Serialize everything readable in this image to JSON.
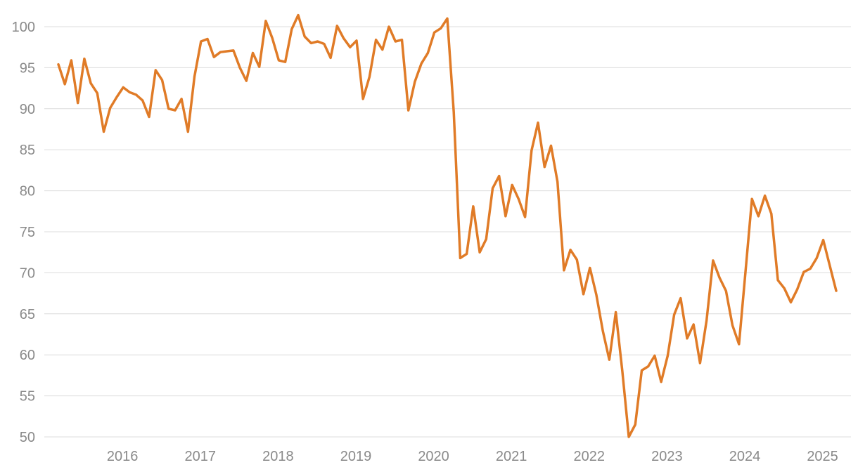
{
  "chart_data": {
    "type": "line",
    "title": "",
    "xlabel": "",
    "ylabel": "",
    "grid": true,
    "legend": "none",
    "ylim": [
      50,
      100
    ],
    "yticks": [
      50,
      55,
      60,
      65,
      70,
      75,
      80,
      85,
      90,
      95,
      100
    ],
    "xticks": [
      "2016",
      "2017",
      "2018",
      "2019",
      "2020",
      "2021",
      "2022",
      "2023",
      "2024",
      "2025"
    ],
    "x_range": [
      "2015-03",
      "2025-03"
    ],
    "colors": {
      "line": "#e07b27",
      "grid": "#dcdcdc",
      "tick_text": "#8a8a8a"
    },
    "series": [
      {
        "x": [
          "2015-03",
          "2015-04",
          "2015-05",
          "2015-06",
          "2015-07",
          "2015-08",
          "2015-09",
          "2015-10",
          "2015-11",
          "2015-12",
          "2016-01",
          "2016-02",
          "2016-03",
          "2016-04",
          "2016-05",
          "2016-06",
          "2016-07",
          "2016-08",
          "2016-09",
          "2016-10",
          "2016-11",
          "2016-12",
          "2017-01",
          "2017-02",
          "2017-03",
          "2017-04",
          "2017-05",
          "2017-06",
          "2017-07",
          "2017-08",
          "2017-09",
          "2017-10",
          "2017-11",
          "2017-12",
          "2018-01",
          "2018-02",
          "2018-03",
          "2018-04",
          "2018-05",
          "2018-06",
          "2018-07",
          "2018-08",
          "2018-09",
          "2018-10",
          "2018-11",
          "2018-12",
          "2019-01",
          "2019-02",
          "2019-03",
          "2019-04",
          "2019-05",
          "2019-06",
          "2019-07",
          "2019-08",
          "2019-09",
          "2019-10",
          "2019-11",
          "2019-12",
          "2020-01",
          "2020-02",
          "2020-03",
          "2020-04",
          "2020-05",
          "2020-06",
          "2020-07",
          "2020-08",
          "2020-09",
          "2020-10",
          "2020-11",
          "2020-12",
          "2021-01",
          "2021-02",
          "2021-03",
          "2021-04",
          "2021-05",
          "2021-06",
          "2021-07",
          "2021-08",
          "2021-09",
          "2021-10",
          "2021-11",
          "2021-12",
          "2022-01",
          "2022-02",
          "2022-03",
          "2022-04",
          "2022-05",
          "2022-06",
          "2022-07",
          "2022-08",
          "2022-09",
          "2022-10",
          "2022-11",
          "2022-12",
          "2023-01",
          "2023-02",
          "2023-03",
          "2023-04",
          "2023-05",
          "2023-06",
          "2023-07",
          "2023-08",
          "2023-09",
          "2023-10",
          "2023-11",
          "2023-12",
          "2024-01",
          "2024-02",
          "2024-03",
          "2024-04",
          "2024-05",
          "2024-06",
          "2024-07",
          "2024-08",
          "2024-09",
          "2024-10",
          "2024-11",
          "2024-12",
          "2025-01",
          "2025-02",
          "2025-03"
        ],
        "values": [
          95.4,
          93.0,
          95.9,
          90.7,
          96.1,
          93.1,
          91.9,
          87.2,
          90.1,
          91.4,
          92.6,
          92.0,
          91.7,
          91.0,
          89.0,
          94.7,
          93.5,
          90.0,
          89.8,
          91.2,
          87.2,
          93.9,
          98.2,
          98.5,
          96.3,
          96.9,
          97.0,
          97.1,
          95.0,
          93.4,
          96.8,
          95.1,
          100.7,
          98.6,
          95.9,
          95.7,
          99.7,
          101.4,
          98.8,
          98.0,
          98.2,
          97.9,
          96.2,
          100.1,
          98.6,
          97.5,
          98.3,
          91.2,
          93.9,
          98.4,
          97.2,
          100.0,
          98.2,
          98.4,
          89.8,
          93.3,
          95.5,
          96.8,
          99.3,
          99.8,
          101.0,
          89.6,
          71.8,
          72.3,
          78.1,
          72.5,
          74.1,
          80.3,
          81.8,
          76.9,
          80.7,
          79.0,
          76.8,
          84.9,
          88.3,
          82.9,
          85.5,
          81.1,
          70.3,
          72.8,
          71.6,
          67.4,
          70.6,
          67.3,
          62.9,
          59.4,
          65.2,
          58.0,
          50.0,
          51.5,
          58.1,
          58.6,
          59.9,
          56.7,
          59.9,
          64.9,
          66.9,
          62.0,
          63.7,
          59.0,
          64.2,
          71.5,
          69.4,
          67.8,
          63.6,
          61.3,
          70.1,
          79.0,
          76.9,
          79.4,
          77.2,
          69.1,
          68.1,
          66.4,
          68.0,
          70.1,
          70.5,
          71.8,
          74.0,
          70.9,
          67.8
        ]
      }
    ]
  }
}
